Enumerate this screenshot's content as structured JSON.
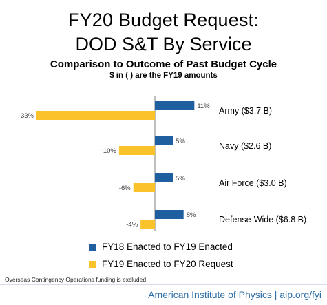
{
  "chart_data": {
    "type": "bar",
    "orientation": "horizontal",
    "title": "FY20 Budget Request:",
    "title_line2": "DOD S&T By Service",
    "subtitle": "Comparison to Outcome of Past Budget Cycle",
    "note": "$ in ( ) are the FY19 amounts",
    "categories": [
      "Army ($3.7 B)",
      "Navy ($2.6 B)",
      "Air Force ($3.0 B)",
      "Defense-Wide ($6.8 B)"
    ],
    "series": [
      {
        "name": "FY18 Enacted to FY19 Enacted",
        "color": "#1f5fa0",
        "values": [
          11,
          5,
          5,
          8
        ],
        "labels": [
          "11%",
          "5%",
          "5%",
          "8%"
        ]
      },
      {
        "name": "FY19 Enacted to FY20 Request",
        "color": "#fac22b",
        "values": [
          -33,
          -10,
          -6,
          -4
        ],
        "labels": [
          "-33%",
          "-10%",
          "-6%",
          "-4%"
        ]
      }
    ],
    "xlim": [
      -35,
      11
    ],
    "grid": false,
    "legend_position": "bottom"
  },
  "footnote": "Overseas Contingency Operations funding is excluded.",
  "footer": "American Institute of Physics | aip.org/fyi"
}
